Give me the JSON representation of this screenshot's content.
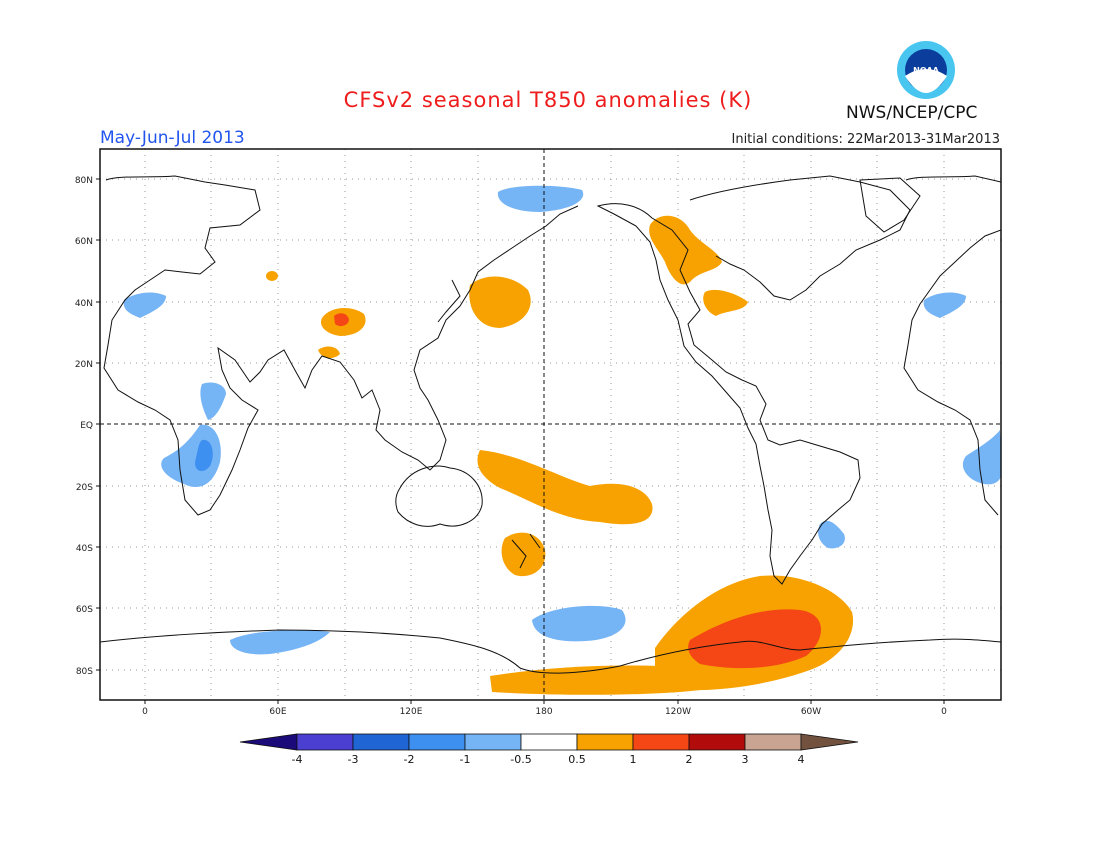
{
  "header": {
    "title": "CFSv2 seasonal T850 anomalies (K)",
    "season": "May-Jun-Jul 2013",
    "agency": "NWS/NCEP/CPC",
    "initial_conditions": "Initial conditions: 22Mar2013-31Mar2013",
    "logo_text": "NOAA"
  },
  "map": {
    "lat_ticks": [
      "80N",
      "60N",
      "40N",
      "20N",
      "EQ",
      "20S",
      "40S",
      "60S",
      "80S"
    ],
    "lon_ticks": [
      "0",
      "60E",
      "120E",
      "180",
      "120W",
      "60W",
      "0"
    ]
  },
  "colorbar": {
    "labels": [
      "-4",
      "-3",
      "-2",
      "-1",
      "-0.5",
      "0.5",
      "1",
      "2",
      "3",
      "4"
    ],
    "colors": [
      "#1a0a7a",
      "#4a3fd0",
      "#1f66d4",
      "#3d8ff0",
      "#75b4f5",
      "#ffffff",
      "#f7a200",
      "#f54715",
      "#b20b0b",
      "#c9a493",
      "#72513f"
    ]
  }
}
